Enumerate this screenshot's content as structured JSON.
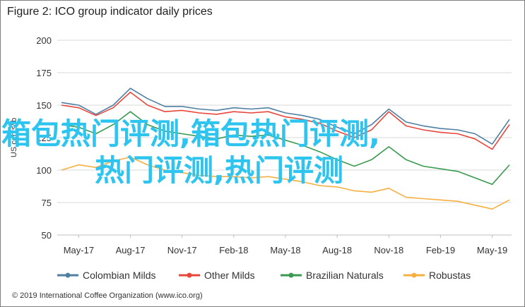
{
  "title": "Figure 2: ICO group indicator daily prices",
  "credit": "© 2019 International Coffee Organization (www.ico.org)",
  "watermark": {
    "line1": "箱包热门评测,箱包热门评测,",
    "line2": "热门评测,热门评测"
  },
  "chart_data": {
    "type": "line",
    "ylabel": "US cents/lb",
    "ylim": [
      50,
      200
    ],
    "yticks": [
      50,
      75,
      100,
      125,
      150,
      175,
      200
    ],
    "x_ticks": [
      "May-17",
      "Aug-17",
      "Nov-17",
      "Feb-18",
      "May-18",
      "Aug-18",
      "Nov-18",
      "Feb-19",
      "May-19"
    ],
    "legend_position": "bottom",
    "grid": true,
    "x": [
      "Apr-17",
      "May-17",
      "Jun-17",
      "Jul-17",
      "Aug-17",
      "Sep-17",
      "Oct-17",
      "Nov-17",
      "Dec-17",
      "Jan-18",
      "Feb-18",
      "Mar-18",
      "Apr-18",
      "May-18",
      "Jun-18",
      "Jul-18",
      "Aug-18",
      "Sep-18",
      "Oct-18",
      "Nov-18",
      "Dec-18",
      "Jan-19",
      "Feb-19",
      "Mar-19",
      "Apr-19",
      "May-19",
      "Jun-19"
    ],
    "series": [
      {
        "name": "Colombian Milds",
        "color": "#4f7fa3",
        "values": [
          152,
          150,
          143,
          150,
          163,
          155,
          149,
          149,
          147,
          146,
          148,
          147,
          148,
          144,
          142,
          139,
          133,
          128,
          135,
          147,
          137,
          134,
          132,
          131,
          128,
          120,
          139
        ]
      },
      {
        "name": "Other Milds",
        "color": "#e8463a",
        "values": [
          150,
          148,
          142,
          148,
          160,
          150,
          145,
          146,
          144,
          143,
          145,
          144,
          145,
          141,
          139,
          136,
          130,
          125,
          131,
          145,
          134,
          131,
          129,
          128,
          124,
          116,
          135
        ]
      },
      {
        "name": "Brazilian Naturals",
        "color": "#3a9a4f",
        "values": [
          135,
          133,
          128,
          135,
          145,
          135,
          130,
          128,
          126,
          124,
          127,
          126,
          127,
          123,
          119,
          114,
          108,
          103,
          108,
          118,
          108,
          103,
          101,
          99,
          94,
          89,
          104
        ]
      },
      {
        "name": "Robustas",
        "color": "#f5b041",
        "values": [
          100,
          104,
          102,
          107,
          110,
          104,
          100,
          98,
          96,
          95,
          95,
          94,
          95,
          93,
          91,
          88,
          87,
          84,
          83,
          86,
          79,
          78,
          77,
          76,
          73,
          70,
          77
        ]
      }
    ]
  }
}
